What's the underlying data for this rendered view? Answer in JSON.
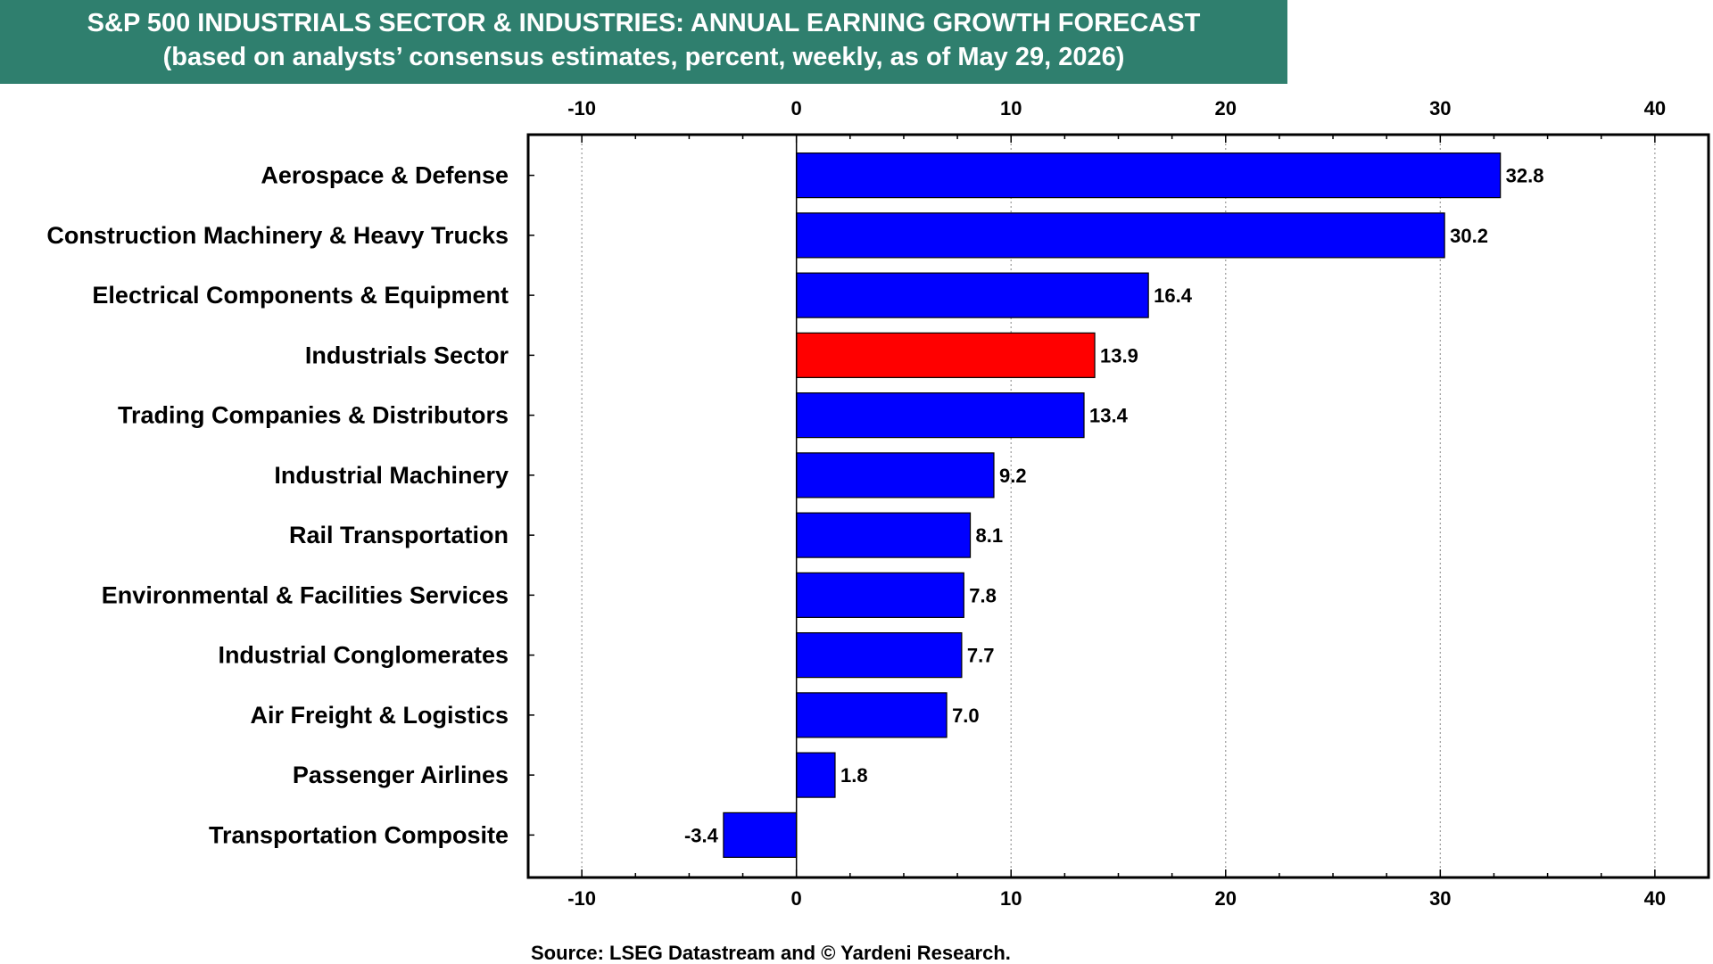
{
  "header": {
    "title": "S&P 500 INDUSTRIALS SECTOR & INDUSTRIES: ANNUAL EARNING GROWTH FORECAST",
    "subtitle": "(based on analysts’ consensus estimates, percent, weekly, as of May 29, 2026)"
  },
  "footer": {
    "source": "Source: LSEG Datastream and © Yardeni Research."
  },
  "colors": {
    "banner": "#2f7f6e",
    "bar_default": "#0000ff",
    "bar_highlight": "#ff0000",
    "axis": "#000000",
    "grid": "#999999"
  },
  "chart_data": {
    "type": "bar",
    "orientation": "horizontal",
    "categories": [
      "Aerospace & Defense",
      "Construction Machinery & Heavy Trucks",
      "Electrical Components & Equipment",
      "Industrials Sector",
      "Trading Companies & Distributors",
      "Industrial Machinery",
      "Rail Transportation",
      "Environmental & Facilities Services",
      "Industrial Conglomerates",
      "Air Freight & Logistics",
      "Passenger Airlines",
      "Transportation Composite"
    ],
    "values": [
      32.8,
      30.2,
      16.4,
      13.9,
      13.4,
      9.2,
      8.1,
      7.8,
      7.7,
      7.0,
      1.8,
      -3.4
    ],
    "value_labels": [
      "32.8",
      "30.2",
      "16.4",
      "13.9",
      "13.4",
      "9.2",
      "8.1",
      "7.8",
      "7.7",
      "7.0",
      "1.8",
      "-3.4"
    ],
    "highlight_category": "Industrials Sector",
    "xlim": [
      -12.5,
      42.5
    ],
    "xticks": [
      -10,
      0,
      10,
      20,
      30,
      40
    ],
    "xtick_labels": [
      "-10",
      "0",
      "10",
      "20",
      "30",
      "40"
    ],
    "tick_axes": [
      "top",
      "bottom"
    ],
    "grid": "vertical-dotted",
    "legend": "none",
    "xlabel": "",
    "ylabel": ""
  }
}
